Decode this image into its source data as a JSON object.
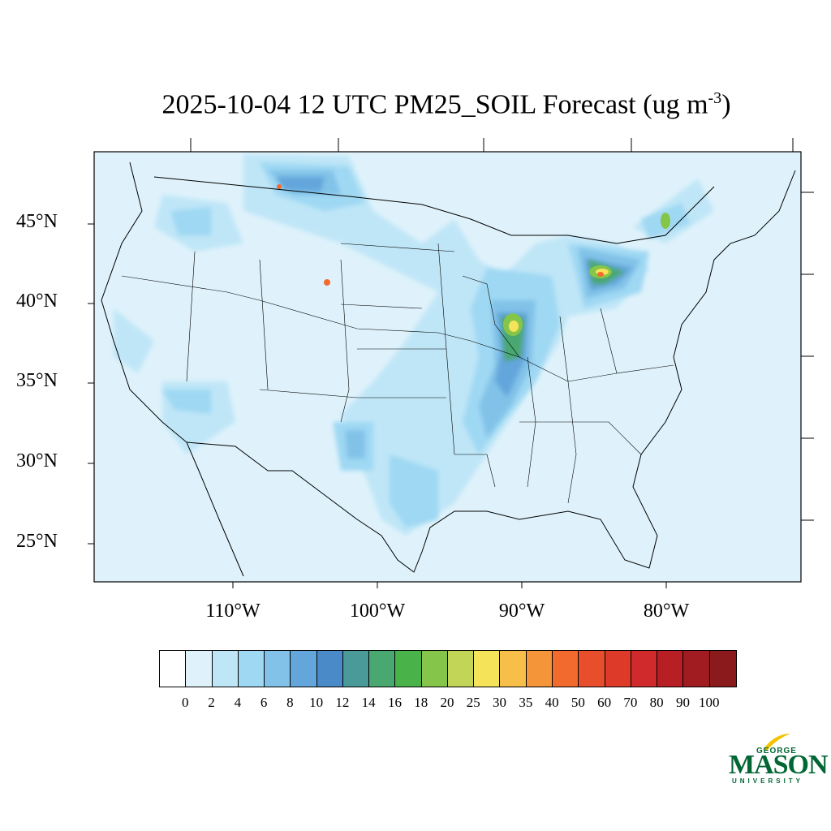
{
  "title": {
    "main": "2025-10-04 12 UTC PM25_SOIL Forecast (ug m",
    "exponent": "-3",
    "close": ")"
  },
  "lat_labels": [
    "45°N",
    "40°N",
    "35°N",
    "30°N",
    "25°N"
  ],
  "lon_labels": [
    "110°W",
    "100°W",
    "90°W",
    "80°W"
  ],
  "colorbar": {
    "labels": [
      "0",
      "2",
      "4",
      "6",
      "8",
      "10",
      "12",
      "14",
      "16",
      "18",
      "20",
      "25",
      "30",
      "35",
      "40",
      "50",
      "60",
      "70",
      "80",
      "90",
      "100"
    ],
    "colors": [
      "#ffffff",
      "#dff2fb",
      "#bfe6f7",
      "#9fd8f3",
      "#82c2e8",
      "#63a6db",
      "#4a8ac9",
      "#4a9a9a",
      "#49a870",
      "#49b34a",
      "#85c54a",
      "#c3d557",
      "#f5e35a",
      "#f7be4a",
      "#f5953a",
      "#f26a2e",
      "#e84e2c",
      "#de3a2a",
      "#d02a2c",
      "#b81f25",
      "#a01c20",
      "#8a1a1c"
    ]
  },
  "logo": {
    "top": "GEORGE",
    "main": "MASON",
    "bottom": "UNIVERSITY"
  },
  "colors": {
    "background_field": "#dff2fb",
    "boundary": "#000000"
  }
}
